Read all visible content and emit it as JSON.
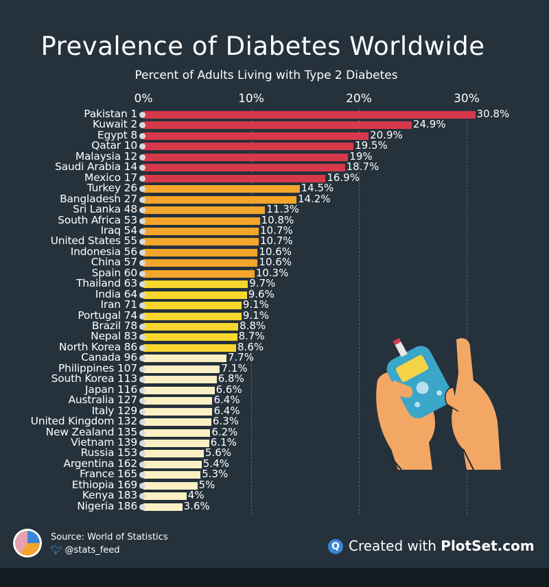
{
  "header": {
    "title": "Prevalence of Diabetes  Worldwide",
    "subtitle": "Percent of Adults Living with Type 2 Diabetes"
  },
  "axis": {
    "ticks": [
      {
        "label": "0%",
        "value": 0
      },
      {
        "label": "10%",
        "value": 10
      },
      {
        "label": "20%",
        "value": 20
      },
      {
        "label": "30%",
        "value": 30
      }
    ]
  },
  "chart_data": {
    "type": "bar",
    "orientation": "horizontal",
    "title": "Prevalence of Diabetes  Worldwide",
    "subtitle": "Percent of Adults Living with Type 2 Diabetes",
    "xlim": [
      0,
      32
    ],
    "categories": [
      "Pakistan 1",
      "Kuwait 2",
      "Egypt 8",
      "Qatar 10",
      "Malaysia 12",
      "Saudi Arabia 14",
      "Mexico 17",
      "Turkey 26",
      "Bangladesh 27",
      "Sri Lanka 48",
      "South Africa 53",
      "Iraq 54",
      "United States 55",
      "Indonesia 56",
      "China 57",
      "Spain 60",
      "Thailand 63",
      "India 64",
      "Iran 71",
      "Portugal 74",
      "Brazil 78",
      "Nepal 83",
      "North Korea 86",
      "Canada 96",
      "Philippines 107",
      "South Korea 113",
      "Japan 116",
      "Australia 127",
      "Italy 129",
      "United Kingdom 132",
      "New Zealand 135",
      "Vietnam 139",
      "Russia 153",
      "Argentina 162",
      "France 165",
      "Ethiopia 169",
      "Kenya 183",
      "Nigeria 186"
    ],
    "values": [
      30.8,
      24.9,
      20.9,
      19.5,
      19,
      18.7,
      16.9,
      14.5,
      14.2,
      11.3,
      10.8,
      10.7,
      10.7,
      10.6,
      10.6,
      10.3,
      9.7,
      9.6,
      9.1,
      9.1,
      8.8,
      8.7,
      8.6,
      7.7,
      7.1,
      6.8,
      6.6,
      6.4,
      6.4,
      6.3,
      6.2,
      6.1,
      5.6,
      5.4,
      5.3,
      5,
      4,
      3.6
    ],
    "value_labels": [
      "30.8%",
      "24.9%",
      "20.9%",
      "19.5%",
      "19%",
      "18.7%",
      "16.9%",
      "14.5%",
      "14.2%",
      "11.3%",
      "10.8%",
      "10.7%",
      "10.7%",
      "10.6%",
      "10.6%",
      "10.3%",
      "9.7%",
      "9.6%",
      "9.1%",
      "9.1%",
      "8.8%",
      "8.7%",
      "8.6%",
      "7.7%",
      "7.1%",
      "6.8%",
      "6.6%",
      "6.4%",
      "6.4%",
      "6.3%",
      "6.2%",
      "6.1%",
      "5.6%",
      "5.4%",
      "5.3%",
      "5%",
      "4%",
      "3.6%"
    ],
    "color_tiers": [
      {
        "min": 15,
        "color": "#d8394a"
      },
      {
        "min": 10,
        "color": "#f4a52c"
      },
      {
        "min": 8,
        "color": "#f7d62e"
      },
      {
        "min": 0,
        "color": "#fbf0c4"
      }
    ]
  },
  "footer": {
    "source": "Source: World of Statistics",
    "handle": "@stats_feed",
    "created_prefix": "Created with ",
    "created_brand": "PlotSet.com"
  }
}
